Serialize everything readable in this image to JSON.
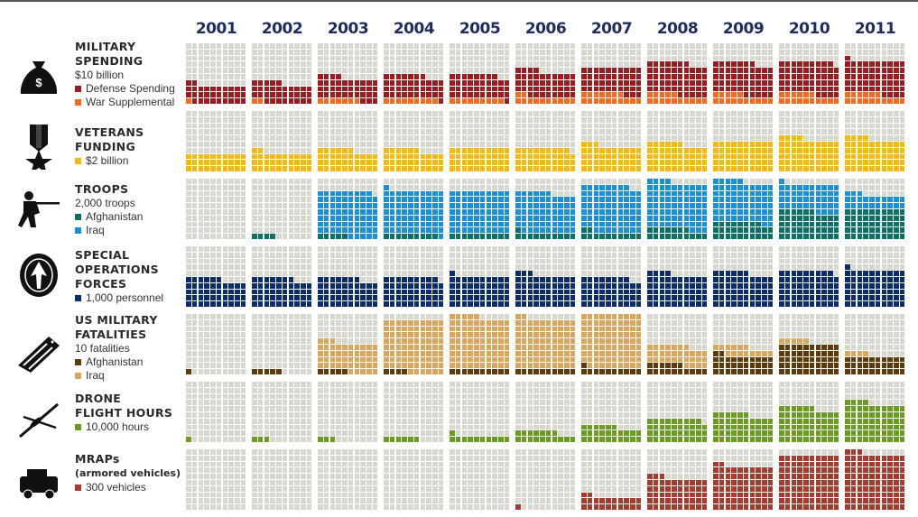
{
  "years": [
    "2001",
    "2002",
    "2003",
    "2004",
    "2005",
    "2006",
    "2007",
    "2008",
    "2009",
    "2010",
    "2011"
  ],
  "chart_data": {
    "type": "waffle",
    "grid": "10x10 per year",
    "rows": [
      {
        "id": "spending",
        "title_lines": [
          "MILITARY",
          "SPENDING"
        ],
        "unit": "$10 billion",
        "icon": "money-bag-icon",
        "series": [
          {
            "name": "War Supplemental",
            "color": "#f26b21",
            "values": [
              1,
              2,
              7,
              9,
              9,
              12,
              17,
              15,
              15,
              16,
              16
            ]
          },
          {
            "name": "Defense Spending",
            "color": "#9b1c20",
            "values": [
              31,
              33,
              37,
              38,
              39,
              42,
              43,
              52,
              52,
              53,
              55
            ]
          }
        ],
        "legend_order": [
          1,
          0
        ]
      },
      {
        "id": "veterans",
        "title_lines": [
          "VETERANS",
          "FUNDING"
        ],
        "unit": "",
        "icon": "medal-icon",
        "series": [
          {
            "name": "$2 billion",
            "color": "#f5b914",
            "values": [
              30,
              32,
              36,
              36,
              40,
              39,
              43,
              46,
              50,
              54,
              54
            ]
          }
        ],
        "legend_order": [
          0
        ]
      },
      {
        "id": "troops",
        "title_lines": [
          "TROOPS"
        ],
        "unit": "2,000 troops",
        "icon": "soldier-icon",
        "series": [
          {
            "name": "Afghanistan",
            "color": "#0b7066",
            "values": [
              0,
              4,
              5,
              9,
              10,
              11,
              12,
              17,
              28,
              46,
              50
            ]
          },
          {
            "name": "Iraq",
            "color": "#1a90d8",
            "values": [
              0,
              0,
              74,
              72,
              70,
              65,
              76,
              77,
              67,
              45,
              23
            ]
          }
        ],
        "legend_order": [
          0,
          1
        ]
      },
      {
        "id": "specops",
        "title_lines": [
          "SPECIAL",
          "OPERATIONS",
          "FORCES"
        ],
        "unit": "",
        "icon": "special-forces-emblem-icon",
        "series": [
          {
            "name": "1,000 personnel",
            "color": "#0d2c6b",
            "values": [
              46,
              47,
              47,
              49,
              51,
              53,
              48,
              54,
              56,
              59,
              61
            ]
          }
        ],
        "legend_order": [
          0
        ]
      },
      {
        "id": "fatalities",
        "title_lines": [
          "US MILITARY",
          "FATALITIES"
        ],
        "unit": "10 fatalities",
        "icon": "flag-icon",
        "series": [
          {
            "name": "Afghanistan",
            "color": "#5e3b0c",
            "values": [
              1,
              5,
              5,
              4,
              10,
              10,
              11,
              16,
              32,
              50,
              30
            ]
          },
          {
            "name": "Iraq",
            "color": "#d8a65c",
            "values": [
              0,
              0,
              48,
              86,
              85,
              82,
              89,
              31,
              14,
              5,
              4
            ]
          }
        ],
        "legend_order": [
          0,
          1
        ]
      },
      {
        "id": "drones",
        "title_lines": [
          "DRONE",
          "FLIGHT HOURS"
        ],
        "unit": "",
        "icon": "drone-icon",
        "series": [
          {
            "name": "10,000 hours",
            "color": "#6a9c24",
            "values": [
              1,
              3,
              3,
              6,
              11,
              17,
              26,
              39,
              46,
              56,
              64
            ]
          }
        ],
        "legend_order": [
          0
        ]
      },
      {
        "id": "mraps",
        "title_lines": [
          "MRAPs",
          "(armored vehicles)"
        ],
        "unit": "",
        "icon": "armored-vehicle-icon",
        "series": [
          {
            "name": "300 vehicles",
            "color": "#a63c2f",
            "values": [
              0,
              0,
              0,
              0,
              0,
              1,
              22,
              53,
              72,
              90,
              93
            ]
          }
        ],
        "legend_order": [
          0
        ]
      }
    ]
  }
}
